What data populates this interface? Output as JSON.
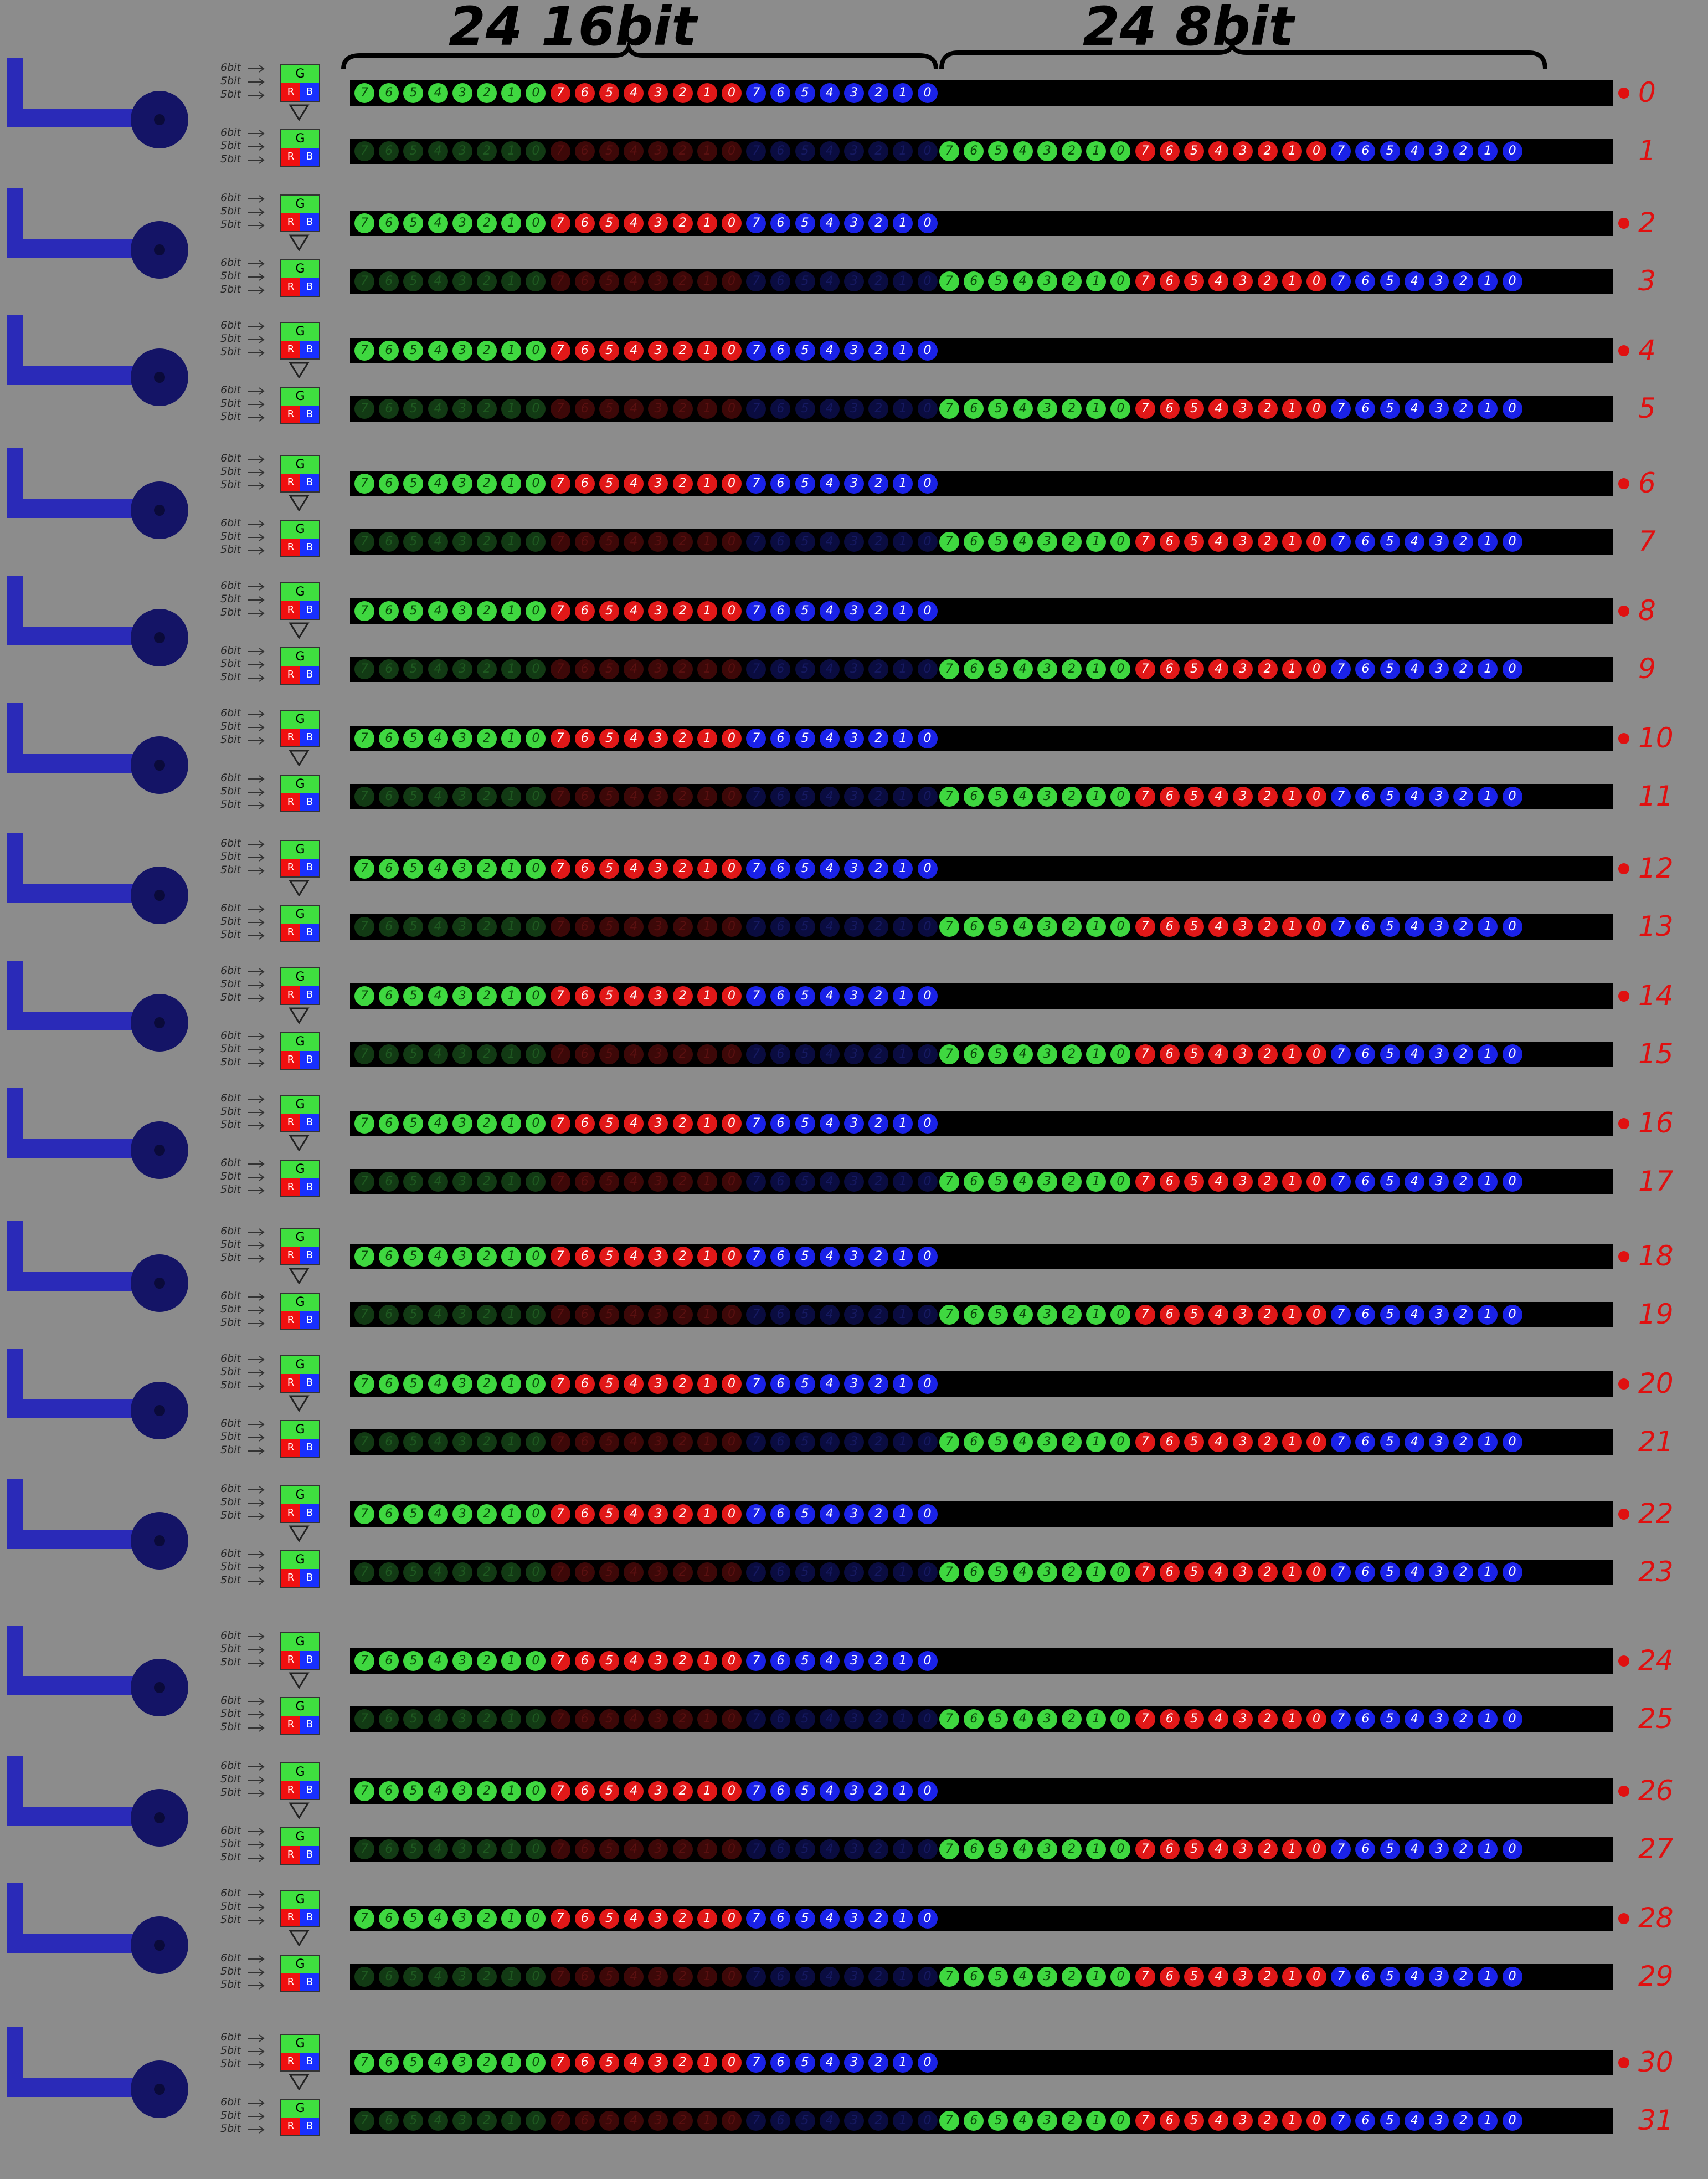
{
  "header": {
    "left_label": "24 16bit",
    "right_label": "24 8bit"
  },
  "legend": {
    "labels": [
      "6bit",
      "5bit",
      "5bit"
    ],
    "channels": [
      "G",
      "R",
      "B"
    ]
  },
  "bits": {
    "green": [
      "7",
      "6",
      "5",
      "4",
      "3",
      "2",
      "1",
      "0"
    ],
    "red": [
      "7",
      "6",
      "5",
      "4",
      "3",
      "2",
      "1",
      "0"
    ],
    "blue": [
      "7",
      "6",
      "5",
      "4",
      "3",
      "2",
      "1",
      "0"
    ]
  },
  "row_numbers": [
    "0",
    "1",
    "2",
    "3",
    "4",
    "5",
    "6",
    "7",
    "8",
    "9",
    "10",
    "11",
    "12",
    "13",
    "14",
    "15",
    "16",
    "17",
    "18",
    "19",
    "20",
    "21",
    "22",
    "23",
    "24",
    "25",
    "26",
    "27",
    "28",
    "29",
    "30",
    "31"
  ],
  "colors": {
    "background": "#8c8c8c",
    "bar": "#000000",
    "green": "#3fd840",
    "red": "#e11818",
    "blue": "#1a22e8",
    "plug": "#2a2ab8",
    "row_number": "#e01010"
  }
}
